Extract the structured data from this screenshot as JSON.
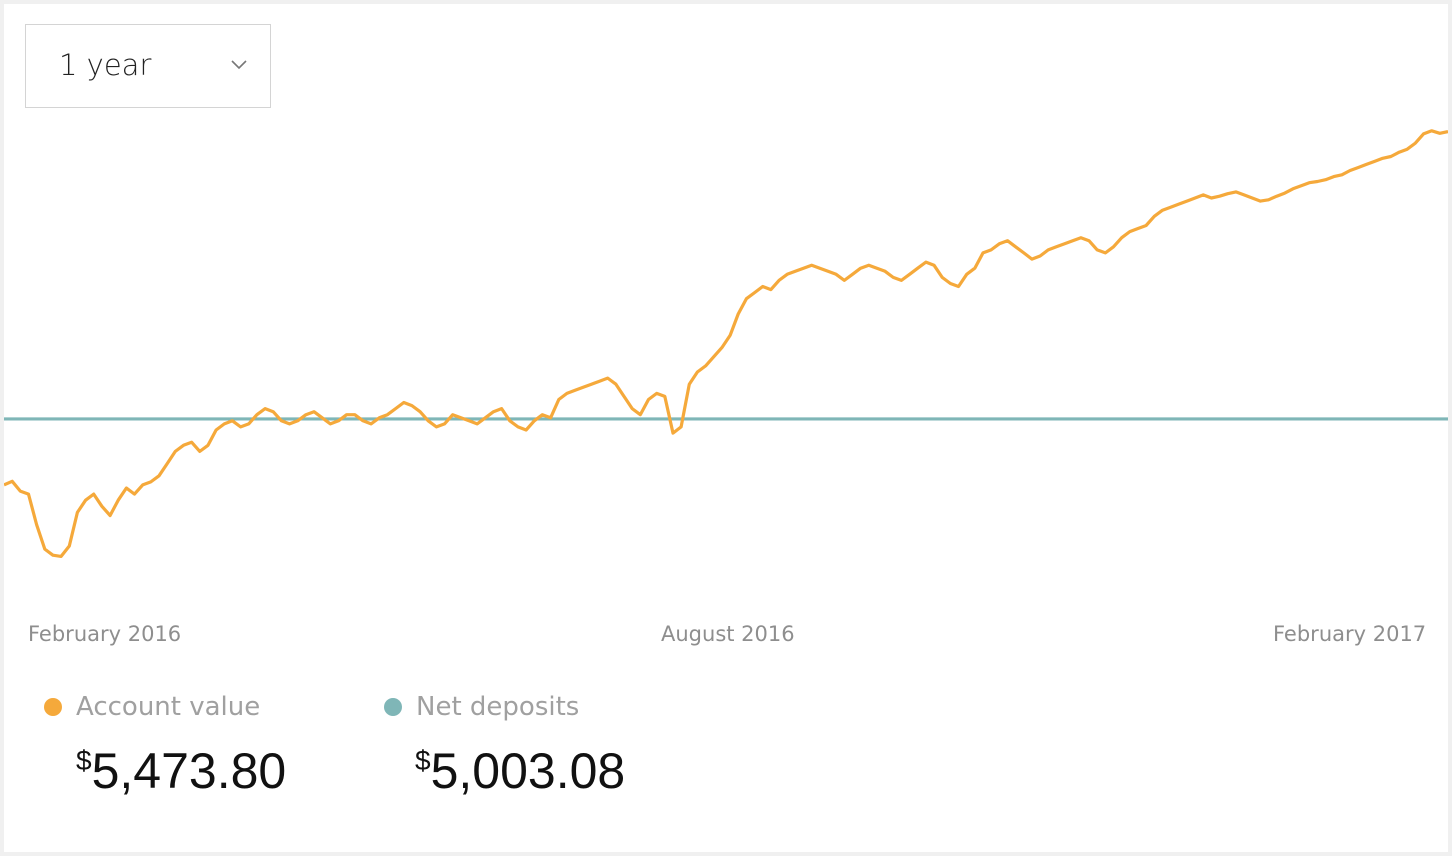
{
  "range_selector": {
    "selected": "1 year"
  },
  "chart_data": {
    "type": "line",
    "x_tick_labels": [
      "February 2016",
      "August 2016",
      "February 2017"
    ],
    "ylim": [
      4700,
      5650
    ],
    "grid": false,
    "legend_placement": "bottom-left",
    "series": [
      {
        "name": "Account value",
        "color": "#F5A93B",
        "values": [
          4895,
          4901,
          4885,
          4880,
          4830,
          4790,
          4780,
          4778,
          4795,
          4850,
          4870,
          4880,
          4860,
          4845,
          4870,
          4890,
          4880,
          4895,
          4900,
          4910,
          4930,
          4950,
          4960,
          4965,
          4950,
          4960,
          4985,
          4995,
          5000,
          4990,
          4995,
          5010,
          5020,
          5015,
          5000,
          4995,
          5000,
          5010,
          5015,
          5005,
          4995,
          5000,
          5010,
          5010,
          5000,
          4995,
          5005,
          5010,
          5020,
          5030,
          5025,
          5015,
          5000,
          4990,
          4995,
          5010,
          5005,
          5000,
          4995,
          5005,
          5015,
          5020,
          5000,
          4990,
          4985,
          5000,
          5010,
          5005,
          5035,
          5045,
          5050,
          5055,
          5060,
          5065,
          5070,
          5060,
          5040,
          5020,
          5010,
          5035,
          5045,
          5040,
          4980,
          4990,
          5060,
          5080,
          5090,
          5105,
          5120,
          5140,
          5175,
          5200,
          5210,
          5220,
          5215,
          5230,
          5240,
          5245,
          5250,
          5255,
          5250,
          5245,
          5240,
          5230,
          5240,
          5250,
          5255,
          5250,
          5245,
          5235,
          5230,
          5240,
          5250,
          5260,
          5255,
          5235,
          5225,
          5220,
          5240,
          5250,
          5275,
          5280,
          5290,
          5295,
          5285,
          5275,
          5265,
          5270,
          5280,
          5285,
          5290,
          5295,
          5300,
          5295,
          5280,
          5275,
          5285,
          5300,
          5310,
          5315,
          5320,
          5335,
          5345,
          5350,
          5355,
          5360,
          5365,
          5370,
          5365,
          5368,
          5372,
          5375,
          5370,
          5365,
          5360,
          5362,
          5368,
          5373,
          5380,
          5385,
          5390,
          5392,
          5395,
          5400,
          5403,
          5410,
          5415,
          5420,
          5425,
          5430,
          5433,
          5440,
          5445,
          5455,
          5470,
          5475,
          5471,
          5473.8
        ]
      },
      {
        "name": "Net deposits",
        "color": "#7FB6B7",
        "values": [
          5003.08,
          5003.08
        ]
      }
    ]
  },
  "legend": {
    "account": {
      "label": "Account value",
      "amount": "5,473.80",
      "color": "#F5A93B"
    },
    "deposits": {
      "label": "Net deposits",
      "amount": "5,003.08",
      "color": "#7FB6B7"
    }
  },
  "currency_symbol": "$"
}
